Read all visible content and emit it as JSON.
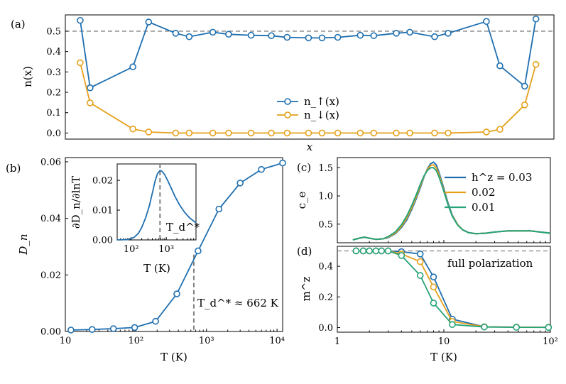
{
  "figure": {
    "panel_labels": [
      "(a)",
      "(b)",
      "(c)",
      "(d)"
    ],
    "annotation_td": "T_d^* ≈ 662 K",
    "annotation_td_value": 662,
    "annotation_td_unit": "K",
    "full_polarization_label": "full polarization",
    "inset_marker_label": "T_d^*"
  },
  "colors": {
    "blue": "#1f6fb0",
    "orange": "#e5a11c",
    "green": "#26a37a",
    "dashed": "#808080"
  },
  "chart_data": [
    {
      "panel": "(a)",
      "type": "line",
      "xlabel": "x",
      "ylabel": "n(x)",
      "ylim": [
        -0.03,
        0.58
      ],
      "yticks": [
        0.0,
        0.1,
        0.2,
        0.3,
        0.4,
        0.5
      ],
      "ytick_labels": [
        "0.0",
        "0.1",
        "0.2",
        "0.3",
        "0.4",
        "0.5"
      ],
      "xticks": [],
      "reference_line": 0.5,
      "legend_position": "center",
      "series": [
        {
          "name": "n_↑(x)",
          "color_key": "blue",
          "x": [
            0.86,
            1.3,
            3.2,
            3.9,
            5.1,
            5.7,
            6.75,
            7.45,
            8.45,
            9.35,
            10.05,
            11.0,
            11.6,
            12.3,
            13.3,
            13.9,
            14.9,
            15.5,
            16.6,
            17.2,
            18.9,
            19.5,
            20.6,
            21.1
          ],
          "values": [
            0.553,
            0.222,
            0.325,
            0.545,
            0.49,
            0.473,
            0.495,
            0.485,
            0.48,
            0.478,
            0.47,
            0.467,
            0.467,
            0.47,
            0.48,
            0.478,
            0.49,
            0.495,
            0.473,
            0.49,
            0.548,
            0.33,
            0.23,
            0.56
          ]
        },
        {
          "name": "n_↓(x)",
          "color_key": "orange",
          "x": [
            0.86,
            1.3,
            3.2,
            3.9,
            5.1,
            5.7,
            6.75,
            7.45,
            8.45,
            9.35,
            10.05,
            11.0,
            11.6,
            12.3,
            13.3,
            13.9,
            14.9,
            15.5,
            16.6,
            17.2,
            18.9,
            19.5,
            20.6,
            21.1
          ],
          "values": [
            0.345,
            0.148,
            0.02,
            0.005,
            0.0,
            0.0,
            0.0,
            0.0,
            0.0,
            0.0,
            0.0,
            0.0,
            0.0,
            0.0,
            0.0,
            0.0,
            0.0,
            0.0,
            0.0,
            0.0,
            0.005,
            0.018,
            0.138,
            0.337
          ]
        }
      ]
    },
    {
      "panel": "(b)",
      "type": "line",
      "xscale": "log",
      "xlabel": "T (K)",
      "ylabel": "D_n",
      "xlim": [
        10,
        12000
      ],
      "ylim": [
        0,
        0.0615
      ],
      "xticks": [
        10,
        100,
        1000,
        10000
      ],
      "xtick_labels": [
        "10",
        "10²",
        "10³",
        "10⁴"
      ],
      "yticks": [
        0.0,
        0.02,
        0.04,
        0.06
      ],
      "ytick_labels": [
        "0.00",
        "0.02",
        "0.04",
        "0.06"
      ],
      "marker_line_x": 662,
      "series": [
        {
          "name": "D_n",
          "color_key": "blue",
          "x": [
            12,
            24,
            48,
            96,
            190,
            380,
            760,
            1500,
            3000,
            6000,
            12000
          ],
          "values": [
            0.0005,
            0.0007,
            0.001,
            0.0014,
            0.0036,
            0.0133,
            0.0285,
            0.0433,
            0.0525,
            0.0573,
            0.0596
          ]
        }
      ]
    },
    {
      "panel": "(b) inset",
      "type": "line",
      "xscale": "log",
      "xlabel": "T (K)",
      "ylabel": "∂D_n/∂lnT",
      "xlim": [
        40,
        7000
      ],
      "ylim": [
        0,
        0.0255
      ],
      "xticks": [
        100,
        1000
      ],
      "xtick_labels": [
        "10²",
        "10³"
      ],
      "yticks": [
        0.0,
        0.01,
        0.02
      ],
      "ytick_labels": [
        "0.00",
        "0.01",
        "0.02"
      ],
      "marker_line_x": 662,
      "series": [
        {
          "name": "∂D_n/∂lnT",
          "color_key": "blue",
          "x": [
            40,
            80,
            120,
            160,
            200,
            260,
            330,
            400,
            480,
            560,
            662,
            760,
            900,
            1100,
            1400,
            1800,
            2400,
            3200,
            4500,
            7000
          ],
          "values": [
            0.0,
            0.0001,
            0.0008,
            0.0022,
            0.0042,
            0.0075,
            0.0115,
            0.0157,
            0.0198,
            0.0222,
            0.0233,
            0.023,
            0.0219,
            0.0199,
            0.0172,
            0.0144,
            0.0117,
            0.0095,
            0.0075,
            0.0057
          ]
        }
      ]
    },
    {
      "panel": "(c)",
      "type": "line",
      "xscale": "log",
      "xlabel": "",
      "ylabel": "c_e",
      "xlim": [
        1,
        100
      ],
      "ylim": [
        0.17,
        1.68
      ],
      "yticks": [
        0.5,
        1.0,
        1.5
      ],
      "ytick_labels": [
        "0.5",
        "1.0",
        "1.5"
      ],
      "legend_title": "h^z =",
      "legend_position": "top-right",
      "series": [
        {
          "name": "0.03",
          "color_key": "blue",
          "x": [
            1.4,
            1.6,
            1.8,
            2.0,
            2.3,
            2.7,
            3.0,
            3.5,
            4.0,
            4.5,
            5.0,
            5.5,
            6.0,
            6.5,
            7.0,
            7.5,
            8.0,
            8.5,
            9.0,
            9.5,
            10.0,
            11.0,
            12.0,
            13.5,
            15.0,
            17.0,
            20.0,
            25.0,
            30.0,
            40.0,
            50.0,
            65.0,
            80.0,
            100.0
          ],
          "values": [
            0.22,
            0.25,
            0.27,
            0.25,
            0.23,
            0.24,
            0.26,
            0.33,
            0.44,
            0.58,
            0.76,
            0.95,
            1.14,
            1.33,
            1.48,
            1.57,
            1.6,
            1.55,
            1.42,
            1.27,
            1.13,
            0.86,
            0.66,
            0.49,
            0.4,
            0.35,
            0.33,
            0.34,
            0.36,
            0.38,
            0.38,
            0.38,
            0.36,
            0.34
          ]
        },
        {
          "name": "0.02",
          "color_key": "orange",
          "x": [
            1.4,
            1.6,
            1.8,
            2.0,
            2.3,
            2.7,
            3.0,
            3.5,
            4.0,
            4.5,
            5.0,
            5.5,
            6.0,
            6.5,
            7.0,
            7.5,
            8.0,
            8.5,
            9.0,
            9.5,
            10.0,
            11.0,
            12.0,
            13.5,
            15.0,
            17.0,
            20.0,
            25.0,
            30.0,
            40.0,
            50.0,
            65.0,
            80.0,
            100.0
          ],
          "values": [
            0.22,
            0.25,
            0.27,
            0.25,
            0.23,
            0.24,
            0.27,
            0.34,
            0.46,
            0.61,
            0.79,
            0.98,
            1.17,
            1.34,
            1.47,
            1.54,
            1.55,
            1.5,
            1.38,
            1.24,
            1.1,
            0.84,
            0.65,
            0.49,
            0.4,
            0.35,
            0.33,
            0.34,
            0.36,
            0.38,
            0.38,
            0.38,
            0.36,
            0.34
          ]
        },
        {
          "name": "0.01",
          "color_key": "green",
          "x": [
            1.4,
            1.6,
            1.8,
            2.0,
            2.3,
            2.7,
            3.0,
            3.5,
            4.0,
            4.5,
            5.0,
            5.5,
            6.0,
            6.5,
            7.0,
            7.5,
            8.0,
            8.5,
            9.0,
            9.5,
            10.0,
            11.0,
            12.0,
            13.5,
            15.0,
            17.0,
            20.0,
            25.0,
            30.0,
            40.0,
            50.0,
            65.0,
            80.0,
            100.0
          ],
          "values": [
            0.22,
            0.25,
            0.27,
            0.25,
            0.23,
            0.24,
            0.28,
            0.36,
            0.49,
            0.65,
            0.83,
            1.02,
            1.2,
            1.35,
            1.45,
            1.5,
            1.5,
            1.45,
            1.34,
            1.21,
            1.08,
            0.83,
            0.64,
            0.48,
            0.4,
            0.35,
            0.33,
            0.34,
            0.36,
            0.38,
            0.38,
            0.38,
            0.36,
            0.34
          ]
        }
      ]
    },
    {
      "panel": "(d)",
      "type": "line",
      "xscale": "log",
      "xlabel": "T (K)",
      "ylabel": "m^z",
      "xlim": [
        1,
        100
      ],
      "ylim": [
        -0.03,
        0.53
      ],
      "xticks": [
        1,
        10,
        100
      ],
      "xtick_labels": [
        "1",
        "10",
        "10²"
      ],
      "yticks": [
        0.0,
        0.2,
        0.4
      ],
      "ytick_labels": [
        "0.0",
        "0.2",
        "0.4"
      ],
      "reference_line": 0.5,
      "series": [
        {
          "name": "0.03",
          "color_key": "blue",
          "x": [
            1.5,
            1.75,
            2.0,
            2.3,
            2.6,
            3.0,
            4.0,
            6.0,
            8.0,
            12.0,
            24.0,
            48.0,
            96.0
          ],
          "values": [
            0.5,
            0.5,
            0.5,
            0.5,
            0.5,
            0.5,
            0.495,
            0.48,
            0.33,
            0.055,
            0.005,
            0.003,
            0.002
          ]
        },
        {
          "name": "0.02",
          "color_key": "orange",
          "x": [
            1.5,
            1.75,
            2.0,
            2.3,
            2.6,
            3.0,
            4.0,
            6.0,
            8.0,
            12.0,
            24.0,
            48.0,
            96.0
          ],
          "values": [
            0.5,
            0.5,
            0.5,
            0.5,
            0.5,
            0.5,
            0.48,
            0.43,
            0.265,
            0.04,
            0.005,
            0.003,
            0.002
          ]
        },
        {
          "name": "0.01",
          "color_key": "green",
          "x": [
            1.5,
            1.75,
            2.0,
            2.3,
            2.6,
            3.0,
            4.0,
            6.0,
            8.0,
            12.0,
            24.0,
            48.0,
            96.0
          ],
          "values": [
            0.5,
            0.5,
            0.5,
            0.5,
            0.5,
            0.5,
            0.47,
            0.34,
            0.16,
            0.02,
            0.004,
            0.002,
            0.001
          ]
        }
      ]
    }
  ]
}
